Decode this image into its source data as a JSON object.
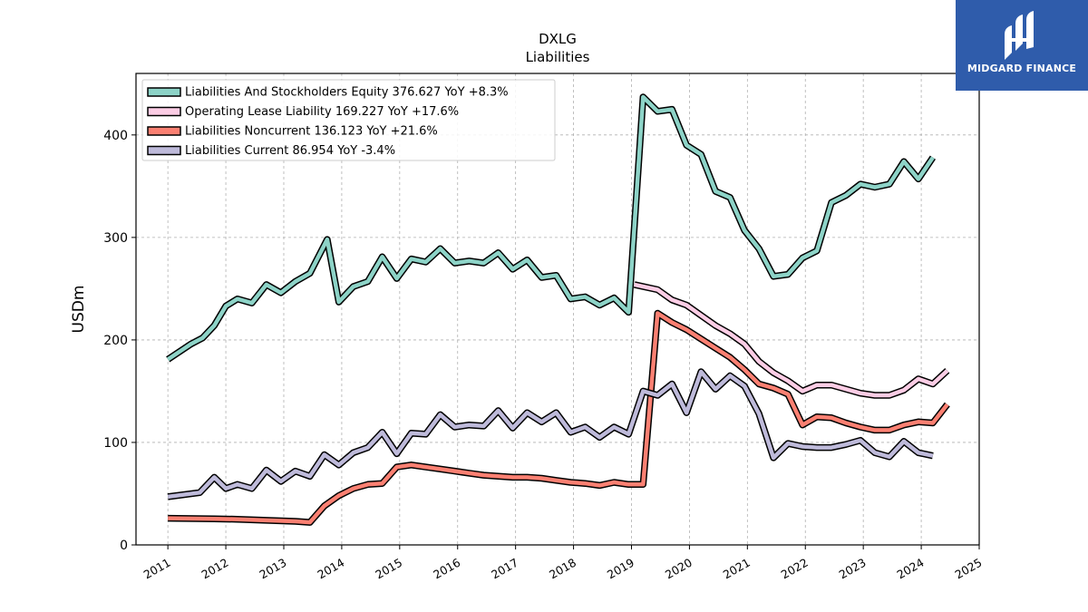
{
  "chart_data": {
    "type": "line",
    "title": "DXLG",
    "subtitle": "Liabilities",
    "xlabel": "",
    "ylabel": "USDm",
    "xlim": [
      2010.45,
      2025.0
    ],
    "ylim": [
      0,
      460
    ],
    "yticks": [
      0,
      100,
      200,
      300,
      400
    ],
    "xticks": [
      "2011",
      "2012",
      "2013",
      "2014",
      "2015",
      "2016",
      "2017",
      "2018",
      "2019",
      "2020",
      "2021",
      "2022",
      "2023",
      "2024",
      "2025"
    ],
    "grid": true,
    "legend_position": "top-left",
    "series": [
      {
        "name": "Liabilities And Stockholders Equity  376.627 YoY +8.3%",
        "color": "#8dd3c7",
        "points": [
          [
            2011.0,
            181
          ],
          [
            2011.4,
            196
          ],
          [
            2011.6,
            202
          ],
          [
            2011.8,
            214
          ],
          [
            2012.0,
            233
          ],
          [
            2012.2,
            240
          ],
          [
            2012.45,
            236
          ],
          [
            2012.7,
            254
          ],
          [
            2012.95,
            246
          ],
          [
            2013.2,
            257
          ],
          [
            2013.45,
            265
          ],
          [
            2013.75,
            298
          ],
          [
            2013.95,
            237
          ],
          [
            2014.2,
            252
          ],
          [
            2014.45,
            257
          ],
          [
            2014.7,
            281
          ],
          [
            2014.95,
            260
          ],
          [
            2015.2,
            279
          ],
          [
            2015.45,
            276
          ],
          [
            2015.7,
            289
          ],
          [
            2015.95,
            275
          ],
          [
            2016.2,
            277
          ],
          [
            2016.45,
            275
          ],
          [
            2016.7,
            285
          ],
          [
            2016.95,
            269
          ],
          [
            2017.2,
            278
          ],
          [
            2017.45,
            261
          ],
          [
            2017.7,
            263
          ],
          [
            2017.95,
            240
          ],
          [
            2018.2,
            242
          ],
          [
            2018.45,
            234
          ],
          [
            2018.7,
            241
          ],
          [
            2018.95,
            227
          ],
          [
            2019.2,
            437
          ],
          [
            2019.45,
            423
          ],
          [
            2019.7,
            425
          ],
          [
            2019.95,
            390
          ],
          [
            2020.2,
            381
          ],
          [
            2020.45,
            345
          ],
          [
            2020.7,
            339
          ],
          [
            2020.95,
            307
          ],
          [
            2021.2,
            289
          ],
          [
            2021.45,
            262
          ],
          [
            2021.7,
            264
          ],
          [
            2021.95,
            280
          ],
          [
            2022.2,
            287
          ],
          [
            2022.45,
            334
          ],
          [
            2022.7,
            341
          ],
          [
            2022.95,
            352
          ],
          [
            2023.2,
            349
          ],
          [
            2023.45,
            352
          ],
          [
            2023.7,
            374
          ],
          [
            2023.95,
            357
          ],
          [
            2024.2,
            378
          ]
        ]
      },
      {
        "name": "Operating Lease Liability  169.227 YoY +17.6%",
        "color": "#fccde5",
        "points": [
          [
            2019.05,
            254
          ],
          [
            2019.45,
            249
          ],
          [
            2019.7,
            239
          ],
          [
            2019.95,
            234
          ],
          [
            2020.2,
            224
          ],
          [
            2020.45,
            214
          ],
          [
            2020.7,
            206
          ],
          [
            2020.95,
            196
          ],
          [
            2021.2,
            179
          ],
          [
            2021.45,
            168
          ],
          [
            2021.7,
            160
          ],
          [
            2021.95,
            150
          ],
          [
            2022.2,
            156
          ],
          [
            2022.45,
            156
          ],
          [
            2022.7,
            152
          ],
          [
            2022.95,
            148
          ],
          [
            2023.2,
            146
          ],
          [
            2023.45,
            146
          ],
          [
            2023.7,
            151
          ],
          [
            2023.95,
            162
          ],
          [
            2024.2,
            157
          ],
          [
            2024.45,
            170
          ]
        ]
      },
      {
        "name": "Liabilities Noncurrent  136.123 YoY +21.6%",
        "color": "#fb8072",
        "points": [
          [
            2011.0,
            26
          ],
          [
            2011.8,
            25.5
          ],
          [
            2012.2,
            25
          ],
          [
            2012.7,
            24
          ],
          [
            2013.2,
            23
          ],
          [
            2013.45,
            22
          ],
          [
            2013.7,
            38
          ],
          [
            2013.95,
            48
          ],
          [
            2014.2,
            55
          ],
          [
            2014.45,
            59
          ],
          [
            2014.7,
            60
          ],
          [
            2014.95,
            76
          ],
          [
            2015.2,
            78
          ],
          [
            2015.45,
            76
          ],
          [
            2015.7,
            74
          ],
          [
            2015.95,
            72
          ],
          [
            2016.2,
            70
          ],
          [
            2016.45,
            68
          ],
          [
            2016.7,
            67
          ],
          [
            2016.95,
            66
          ],
          [
            2017.2,
            66
          ],
          [
            2017.45,
            65
          ],
          [
            2017.7,
            63
          ],
          [
            2017.95,
            61
          ],
          [
            2018.2,
            60
          ],
          [
            2018.45,
            58
          ],
          [
            2018.7,
            61
          ],
          [
            2018.95,
            59
          ],
          [
            2019.2,
            59
          ],
          [
            2019.45,
            226
          ],
          [
            2019.7,
            217
          ],
          [
            2019.95,
            210
          ],
          [
            2020.2,
            201
          ],
          [
            2020.45,
            192
          ],
          [
            2020.7,
            183
          ],
          [
            2020.95,
            171
          ],
          [
            2021.2,
            157
          ],
          [
            2021.45,
            153
          ],
          [
            2021.7,
            147
          ],
          [
            2021.95,
            117
          ],
          [
            2022.2,
            125
          ],
          [
            2022.45,
            124
          ],
          [
            2022.7,
            119
          ],
          [
            2022.95,
            115
          ],
          [
            2023.2,
            112
          ],
          [
            2023.45,
            112
          ],
          [
            2023.7,
            117
          ],
          [
            2023.95,
            120
          ],
          [
            2024.2,
            119
          ],
          [
            2024.45,
            137
          ]
        ]
      },
      {
        "name": "Liabilities Current  86.954 YoY -3.4%",
        "color": "#bebada",
        "points": [
          [
            2011.0,
            47
          ],
          [
            2011.55,
            51
          ],
          [
            2011.8,
            66
          ],
          [
            2012.0,
            55
          ],
          [
            2012.2,
            59
          ],
          [
            2012.45,
            55
          ],
          [
            2012.7,
            73
          ],
          [
            2012.95,
            62
          ],
          [
            2013.2,
            72
          ],
          [
            2013.45,
            67
          ],
          [
            2013.7,
            88
          ],
          [
            2013.95,
            78
          ],
          [
            2014.2,
            90
          ],
          [
            2014.45,
            95
          ],
          [
            2014.7,
            110
          ],
          [
            2014.95,
            89
          ],
          [
            2015.2,
            109
          ],
          [
            2015.45,
            108
          ],
          [
            2015.7,
            127
          ],
          [
            2015.95,
            115
          ],
          [
            2016.2,
            117
          ],
          [
            2016.45,
            116
          ],
          [
            2016.7,
            131
          ],
          [
            2016.95,
            114
          ],
          [
            2017.2,
            129
          ],
          [
            2017.45,
            120
          ],
          [
            2017.7,
            129
          ],
          [
            2017.95,
            110
          ],
          [
            2018.2,
            115
          ],
          [
            2018.45,
            105
          ],
          [
            2018.7,
            115
          ],
          [
            2018.95,
            108
          ],
          [
            2019.2,
            150
          ],
          [
            2019.45,
            146
          ],
          [
            2019.7,
            157
          ],
          [
            2019.95,
            129
          ],
          [
            2020.2,
            169
          ],
          [
            2020.45,
            152
          ],
          [
            2020.7,
            165
          ],
          [
            2020.95,
            155
          ],
          [
            2021.2,
            128
          ],
          [
            2021.45,
            85
          ],
          [
            2021.7,
            99
          ],
          [
            2021.95,
            96
          ],
          [
            2022.2,
            95
          ],
          [
            2022.45,
            95
          ],
          [
            2022.7,
            98
          ],
          [
            2022.95,
            102
          ],
          [
            2023.2,
            90
          ],
          [
            2023.45,
            86
          ],
          [
            2023.7,
            101
          ],
          [
            2023.95,
            90
          ],
          [
            2024.2,
            87
          ]
        ]
      }
    ]
  },
  "logo": {
    "text": "MIDGARD FINANCE",
    "color": "#2f5cab"
  }
}
